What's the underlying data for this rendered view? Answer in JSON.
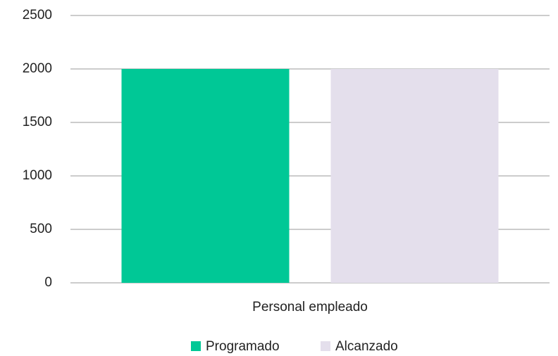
{
  "chart_data": {
    "type": "bar",
    "categories": [
      "Personal empleado"
    ],
    "series": [
      {
        "name": "Programado",
        "color": "#00c896",
        "values": [
          2000
        ]
      },
      {
        "name": "Alcanzado",
        "color": "#e4dfec",
        "values": [
          2000
        ]
      }
    ],
    "ylim": [
      0,
      2500
    ],
    "yticks": [
      0,
      500,
      1000,
      1500,
      2000,
      2500
    ],
    "grid": true,
    "legend": "bottom"
  }
}
